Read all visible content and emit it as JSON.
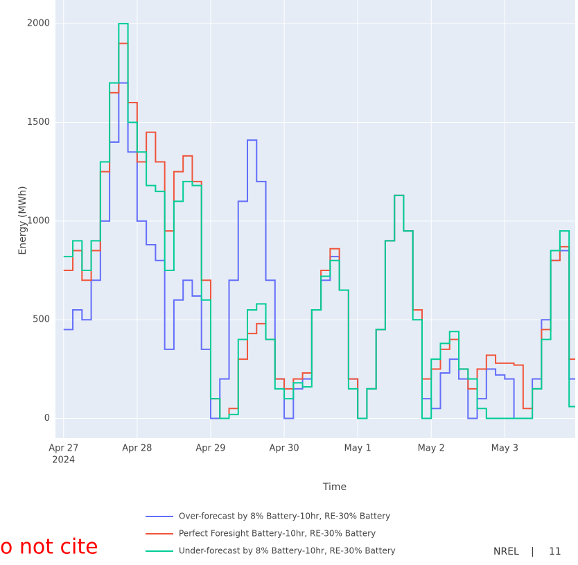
{
  "chart_data": {
    "type": "line",
    "line_shape": "hv",
    "x_label": "Time",
    "y_label": "Energy (MWh)",
    "x": [
      "2024-04-27 00:00",
      "2024-04-27 03:00",
      "2024-04-27 06:00",
      "2024-04-27 09:00",
      "2024-04-27 12:00",
      "2024-04-27 15:00",
      "2024-04-27 18:00",
      "2024-04-27 21:00",
      "2024-04-28 00:00",
      "2024-04-28 03:00",
      "2024-04-28 06:00",
      "2024-04-28 09:00",
      "2024-04-28 12:00",
      "2024-04-28 15:00",
      "2024-04-28 18:00",
      "2024-04-28 21:00",
      "2024-04-29 00:00",
      "2024-04-29 03:00",
      "2024-04-29 06:00",
      "2024-04-29 09:00",
      "2024-04-29 12:00",
      "2024-04-29 15:00",
      "2024-04-29 18:00",
      "2024-04-29 21:00",
      "2024-04-30 00:00",
      "2024-04-30 03:00",
      "2024-04-30 06:00",
      "2024-04-30 09:00",
      "2024-04-30 12:00",
      "2024-04-30 15:00",
      "2024-04-30 18:00",
      "2024-04-30 21:00",
      "2024-05-01 00:00",
      "2024-05-01 03:00",
      "2024-05-01 06:00",
      "2024-05-01 09:00",
      "2024-05-01 12:00",
      "2024-05-01 15:00",
      "2024-05-01 18:00",
      "2024-05-01 21:00",
      "2024-05-02 00:00",
      "2024-05-02 03:00",
      "2024-05-02 06:00",
      "2024-05-02 09:00",
      "2024-05-02 12:00",
      "2024-05-02 15:00",
      "2024-05-02 18:00",
      "2024-05-02 21:00",
      "2024-05-03 00:00",
      "2024-05-03 03:00",
      "2024-05-03 06:00",
      "2024-05-03 09:00",
      "2024-05-03 12:00",
      "2024-05-03 15:00",
      "2024-05-03 18:00",
      "2024-05-03 21:00"
    ],
    "series": [
      {
        "name": "Over-forecast by 8% Battery-10hr, RE-30% Battery",
        "color": "#636efa",
        "values": [
          450,
          550,
          500,
          700,
          1000,
          1400,
          1700,
          1350,
          1000,
          880,
          800,
          350,
          600,
          700,
          620,
          350,
          0,
          200,
          700,
          1100,
          1410,
          1200,
          700,
          200,
          0,
          150,
          200,
          550,
          700,
          820,
          650,
          200,
          0,
          150,
          450,
          900,
          1130,
          950,
          550,
          100,
          50,
          230,
          300,
          200,
          0,
          100,
          250,
          220,
          200,
          0,
          0,
          200,
          500,
          800,
          850,
          200
        ]
      },
      {
        "name": "Perfect Foresight Battery-10hr, RE-30% Battery",
        "color": "#ef553b",
        "values": [
          750,
          850,
          700,
          850,
          1250,
          1650,
          1900,
          1600,
          1300,
          1450,
          1300,
          950,
          1250,
          1330,
          1200,
          700,
          100,
          0,
          50,
          300,
          430,
          480,
          400,
          200,
          150,
          200,
          230,
          550,
          750,
          860,
          650,
          200,
          0,
          150,
          450,
          900,
          1130,
          950,
          550,
          200,
          250,
          350,
          400,
          250,
          150,
          250,
          320,
          280,
          280,
          270,
          50,
          150,
          450,
          800,
          870,
          300
        ]
      },
      {
        "name": "Under-forecast by 8% Battery-10hr, RE-30% Battery",
        "color": "#00cc96",
        "values": [
          820,
          900,
          750,
          900,
          1300,
          1700,
          2000,
          1500,
          1350,
          1180,
          1150,
          750,
          1100,
          1200,
          1180,
          600,
          100,
          0,
          20,
          400,
          550,
          580,
          400,
          150,
          100,
          180,
          160,
          550,
          720,
          800,
          650,
          150,
          0,
          150,
          450,
          900,
          1130,
          950,
          500,
          0,
          300,
          380,
          440,
          250,
          200,
          50,
          0,
          0,
          0,
          0,
          0,
          150,
          400,
          850,
          950,
          60
        ]
      }
    ],
    "xlim": [
      "2024-04-26 21:20",
      "2024-05-03 23:00"
    ],
    "xticks": [
      {
        "value": "2024-04-27",
        "label": "Apr 27",
        "sublabel": "2024"
      },
      {
        "value": "2024-04-28",
        "label": "Apr 28"
      },
      {
        "value": "2024-04-29",
        "label": "Apr 29"
      },
      {
        "value": "2024-04-30",
        "label": "Apr 30"
      },
      {
        "value": "2024-05-01",
        "label": "May 1"
      },
      {
        "value": "2024-05-02",
        "label": "May 2"
      },
      {
        "value": "2024-05-03",
        "label": "May 3"
      }
    ],
    "ylim": [
      -100,
      2120
    ],
    "yticks": [
      0,
      500,
      1000,
      1500,
      2000
    ],
    "grid": true,
    "background": "#e5ecf6"
  },
  "footer": {
    "note": "o not cite",
    "org": "NREL",
    "separator": "|",
    "page": "11"
  }
}
